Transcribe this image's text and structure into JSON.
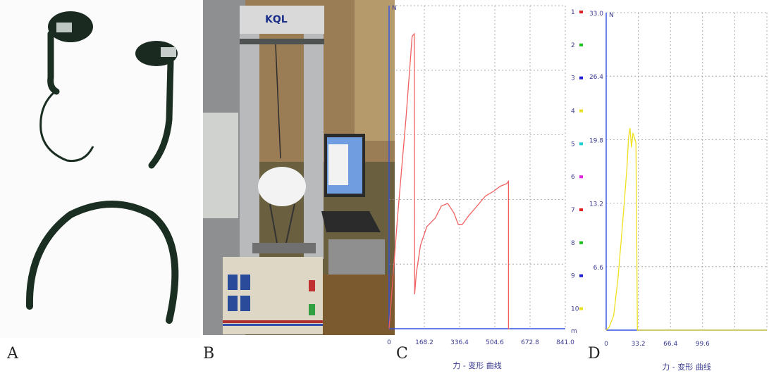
{
  "panels": {
    "a": {
      "label": "A"
    },
    "b": {
      "label": "B",
      "machine_brand": "KQL"
    },
    "c": {
      "label": "C"
    },
    "d": {
      "label": "D"
    }
  },
  "chart_data": [
    {
      "type": "line",
      "panel": "C",
      "xlabel": "力 - 变形 曲线",
      "y_unit": "N",
      "x_unit": "m",
      "ylim": [
        0,
        263.0
      ],
      "xlim": [
        0,
        841.0
      ],
      "yticks": [
        "52.6",
        "105.2",
        "157.8",
        "210.4",
        "263.0"
      ],
      "xticks": [
        "0",
        "168.2",
        "336.4",
        "504.6",
        "672.8",
        "841.0"
      ],
      "grid": true,
      "channels": [
        "1",
        "2",
        "3",
        "4",
        "5",
        "6",
        "7",
        "8",
        "9",
        "10"
      ],
      "channel_colors": [
        "#e02020",
        "#20c020",
        "#2020d0",
        "#e8e020",
        "#20d0d0",
        "#e020e0",
        "#e02020",
        "#20c020",
        "#2020d0",
        "#e8e020"
      ],
      "series": [
        {
          "color": "#f06060",
          "x": [
            0,
            20,
            40,
            60,
            80,
            100,
            110,
            120,
            122,
            130,
            150,
            180,
            220,
            250,
            280,
            310,
            330,
            350,
            380,
            420,
            460,
            500,
            530,
            560,
            570,
            570,
            575
          ],
          "y": [
            0,
            45,
            90,
            130,
            170,
            215,
            238,
            240,
            28,
            45,
            68,
            83,
            90,
            100,
            102,
            94,
            85,
            85,
            92,
            100,
            108,
            112,
            116,
            118,
            120,
            0,
            0
          ]
        }
      ]
    },
    {
      "type": "line",
      "panel": "D",
      "xlabel": "力 - 变形 曲线",
      "y_unit": "N",
      "ylim": [
        0,
        33.0
      ],
      "xlim": [
        0,
        108
      ],
      "yticks": [
        "6.6",
        "13.2",
        "19.8",
        "26.4",
        "33.0"
      ],
      "xticks": [
        "0",
        "33.2",
        "66.4",
        "99.6"
      ],
      "grid": true,
      "series": [
        {
          "color": "#f0e020",
          "x": [
            0,
            2,
            5,
            8,
            11,
            14,
            15,
            16,
            17,
            18,
            19,
            20,
            20.5,
            21,
            108
          ],
          "y": [
            0,
            0.3,
            1.5,
            5.5,
            11,
            17,
            20,
            21,
            19,
            20.5,
            20,
            19.5,
            10,
            0,
            0
          ]
        }
      ]
    }
  ]
}
